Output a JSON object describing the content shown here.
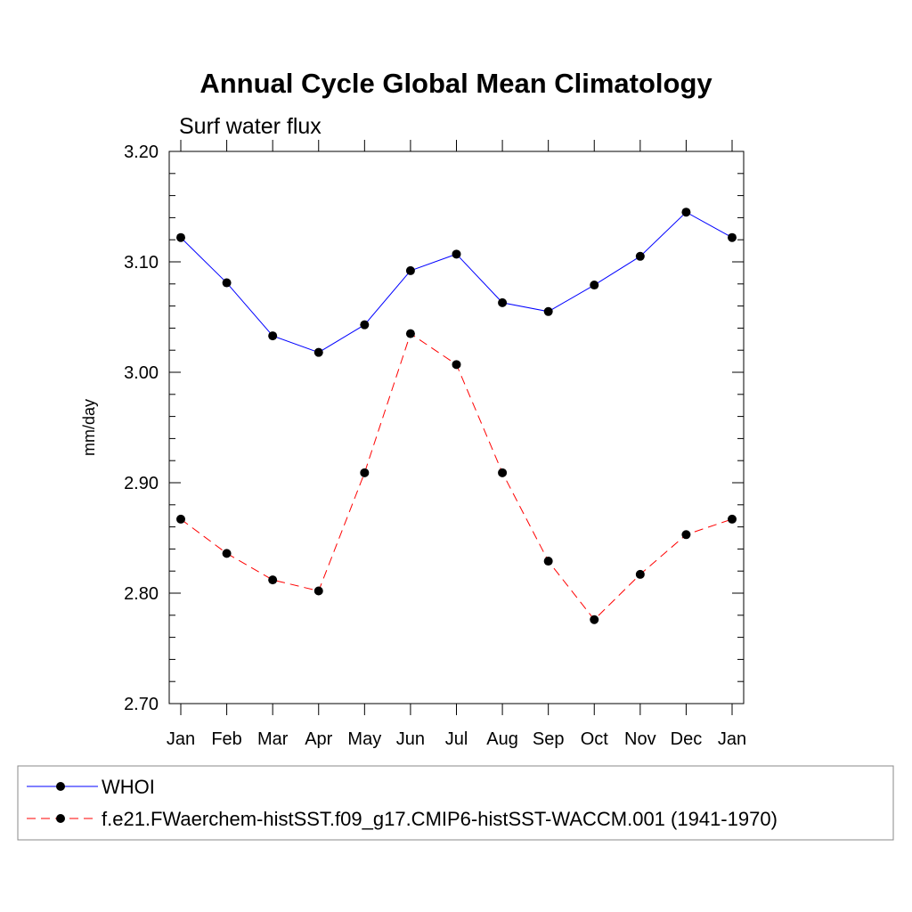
{
  "chart_data": {
    "type": "line",
    "title": "Annual Cycle Global Mean Climatology",
    "subtitle": "Surf water flux",
    "ylabel": "mm/day",
    "xlabel": "",
    "categories": [
      "Jan",
      "Feb",
      "Mar",
      "Apr",
      "May",
      "Jun",
      "Jul",
      "Aug",
      "Sep",
      "Oct",
      "Nov",
      "Dec",
      "Jan"
    ],
    "ylim": [
      2.7,
      3.2
    ],
    "yticks": [
      "2.70",
      "2.80",
      "2.90",
      "3.00",
      "3.10",
      "3.20"
    ],
    "grid": false,
    "legend_position": "bottom",
    "series": [
      {
        "name": "WHOI",
        "color": "#0000ff",
        "line_style": "solid",
        "marker": "filled-circle",
        "values": [
          3.122,
          3.081,
          3.033,
          3.018,
          3.043,
          3.092,
          3.107,
          3.063,
          3.055,
          3.079,
          3.105,
          3.145,
          3.122
        ]
      },
      {
        "name": "f.e21.FWaerchem-histSST.f09_g17.CMIP6-histSST-WACCM.001 (1941-1970)",
        "color": "#ff0000",
        "line_style": "dashed",
        "marker": "filled-circle",
        "values": [
          2.867,
          2.836,
          2.812,
          2.802,
          2.909,
          3.035,
          3.007,
          2.909,
          2.829,
          2.776,
          2.817,
          2.853,
          2.867
        ]
      }
    ]
  }
}
